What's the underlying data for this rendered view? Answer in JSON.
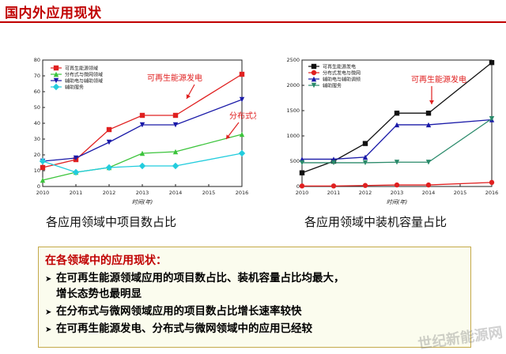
{
  "page": {
    "title": "国内外应用现状",
    "watermark": "世纪新能源网"
  },
  "captions": {
    "left": "各应用领域中项目数占比",
    "right": "各应用领域中装机容量占比"
  },
  "box": {
    "heading": "在各领域中的应用现状：",
    "bullets": [
      "在可再生能源领域应用的项目数占比、装机容量占比均最大，",
      "增长态势也最明显",
      "在分布式与微网领域应用的项目数占比增长速率较快",
      "在可再生能源发电、分布式与微网领域中的应用已经较"
    ]
  },
  "chart_data": [
    {
      "type": "line",
      "xlabel": "时间(年)",
      "ylabel": "",
      "x": [
        2010,
        2011,
        2012,
        2013,
        2014,
        2015,
        2016
      ],
      "xticks": [
        "2010",
        "2011",
        "2012",
        "2013",
        "2014",
        "2015",
        "2016"
      ],
      "ylim": [
        0,
        80
      ],
      "yticks": [
        "0",
        "10",
        "20",
        "30",
        "40",
        "50",
        "60",
        "70",
        "80"
      ],
      "legend_position": "top-left",
      "series": [
        {
          "name": "可再生能源领域",
          "color": "#e02020",
          "marker": "square",
          "points": [
            [
              2010,
              12
            ],
            [
              2011,
              17
            ],
            [
              2012,
              36
            ],
            [
              2013,
              45
            ],
            [
              2014,
              45
            ],
            [
              2016,
              71
            ]
          ]
        },
        {
          "name": "分布式与微网领域",
          "color": "#3cc43c",
          "marker": "triangle",
          "points": [
            [
              2010,
              4
            ],
            [
              2011,
              9
            ],
            [
              2012,
              12
            ],
            [
              2013,
              21
            ],
            [
              2014,
              22
            ],
            [
              2016,
              33
            ]
          ]
        },
        {
          "name": "辅助电与辅助领域",
          "color": "#1a1aa8",
          "marker": "triangle-down",
          "points": [
            [
              2010,
              16
            ],
            [
              2011,
              18
            ],
            [
              2012,
              28
            ],
            [
              2013,
              39
            ],
            [
              2014,
              39
            ],
            [
              2016,
              55
            ]
          ]
        },
        {
          "name": "辅助服务",
          "color": "#22ccdd",
          "marker": "diamond",
          "points": [
            [
              2010,
              16
            ],
            [
              2011,
              9
            ],
            [
              2012,
              12
            ],
            [
              2013,
              13
            ],
            [
              2014,
              13
            ],
            [
              2016,
              21
            ]
          ]
        }
      ],
      "annotations": [
        {
          "text": "可再生能源发电",
          "color": "#e02020"
        },
        {
          "text": "分布式发电",
          "color": "#e02020"
        }
      ]
    },
    {
      "type": "line",
      "xlabel": "时间(年)",
      "ylabel": "",
      "x": [
        2010,
        2011,
        2012,
        2013,
        2014,
        2015,
        2016
      ],
      "xticks": [
        "2010",
        "2011",
        "2012",
        "2013",
        "2014",
        "2015",
        "2016"
      ],
      "ylim": [
        0,
        2500
      ],
      "yticks": [
        "0",
        "500",
        "1000",
        "1500",
        "2000",
        "2500"
      ],
      "legend_position": "top-left",
      "series": [
        {
          "name": "可再生能源发电",
          "color": "#111111",
          "marker": "square",
          "points": [
            [
              2010,
              270
            ],
            [
              2011,
              500
            ],
            [
              2012,
              850
            ],
            [
              2013,
              1450
            ],
            [
              2014,
              1450
            ],
            [
              2016,
              2450
            ]
          ]
        },
        {
          "name": "分布式发电与微网",
          "color": "#e02020",
          "marker": "circle",
          "points": [
            [
              2010,
              10
            ],
            [
              2011,
              10
            ],
            [
              2012,
              20
            ],
            [
              2013,
              30
            ],
            [
              2014,
              30
            ],
            [
              2016,
              80
            ]
          ]
        },
        {
          "name": "辅助电与辅助调频",
          "color": "#1a1aa8",
          "marker": "triangle",
          "points": [
            [
              2010,
              540
            ],
            [
              2011,
              540
            ],
            [
              2012,
              580
            ],
            [
              2013,
              1220
            ],
            [
              2014,
              1220
            ],
            [
              2016,
              1320
            ]
          ]
        },
        {
          "name": "辅助服务",
          "color": "#2a8a6a",
          "marker": "triangle-down",
          "points": [
            [
              2010,
              470
            ],
            [
              2011,
              470
            ],
            [
              2012,
              470
            ],
            [
              2013,
              480
            ],
            [
              2014,
              480
            ],
            [
              2016,
              1340
            ]
          ]
        }
      ],
      "annotations": [
        {
          "text": "可再生能源发电",
          "color": "#e02020"
        }
      ]
    }
  ]
}
